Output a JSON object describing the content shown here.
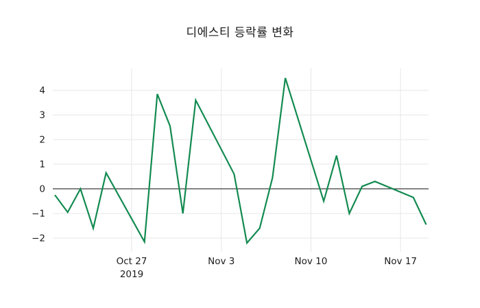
{
  "chart_data": {
    "type": "line",
    "title": "디에스티 등락률 변화",
    "series": [
      {
        "name": "디에스티 등락률",
        "dates": [
          "2019-10-21",
          "2019-10-22",
          "2019-10-23",
          "2019-10-24",
          "2019-10-25",
          "2019-10-28",
          "2019-10-29",
          "2019-10-30",
          "2019-10-31",
          "2019-11-01",
          "2019-11-04",
          "2019-11-05",
          "2019-11-06",
          "2019-11-07",
          "2019-11-08",
          "2019-11-11",
          "2019-11-12",
          "2019-11-13",
          "2019-11-14",
          "2019-11-15",
          "2019-11-18",
          "2019-11-19"
        ],
        "x_days_from_oct27": [
          -6,
          -5,
          -4,
          -3,
          -2,
          1,
          2,
          3,
          4,
          5,
          8,
          9,
          10,
          11,
          12,
          15,
          16,
          17,
          18,
          19,
          22,
          23
        ],
        "values": [
          -0.25,
          -0.95,
          0.0,
          -1.6,
          0.65,
          -2.15,
          3.85,
          2.55,
          -1.0,
          3.6,
          0.6,
          -2.2,
          -1.6,
          0.45,
          4.5,
          -0.5,
          1.35,
          -1.0,
          0.1,
          0.3,
          -0.35,
          -1.45
        ]
      }
    ],
    "x_ticks": [
      {
        "label": "Oct 27",
        "sublabel": "2019",
        "day": 0
      },
      {
        "label": "Nov 3",
        "sublabel": "",
        "day": 7
      },
      {
        "label": "Nov 10",
        "sublabel": "",
        "day": 14
      },
      {
        "label": "Nov 17",
        "sublabel": "",
        "day": 21
      }
    ],
    "y_ticks": [
      4,
      3,
      2,
      1,
      0,
      -1,
      -2
    ],
    "xlim_days": [
      -6.16,
      23.19
    ],
    "ylim": [
      -2.56,
      4.89
    ],
    "xlabel": "",
    "ylabel": "",
    "grid": true,
    "zero_line": true,
    "legend": "none",
    "line_color": "#128a50",
    "grid_color": "#e6e6e6",
    "zero_line_color": "#3c3c3c",
    "text_color": "#1a1a1a",
    "background_color": "#ffffff"
  }
}
